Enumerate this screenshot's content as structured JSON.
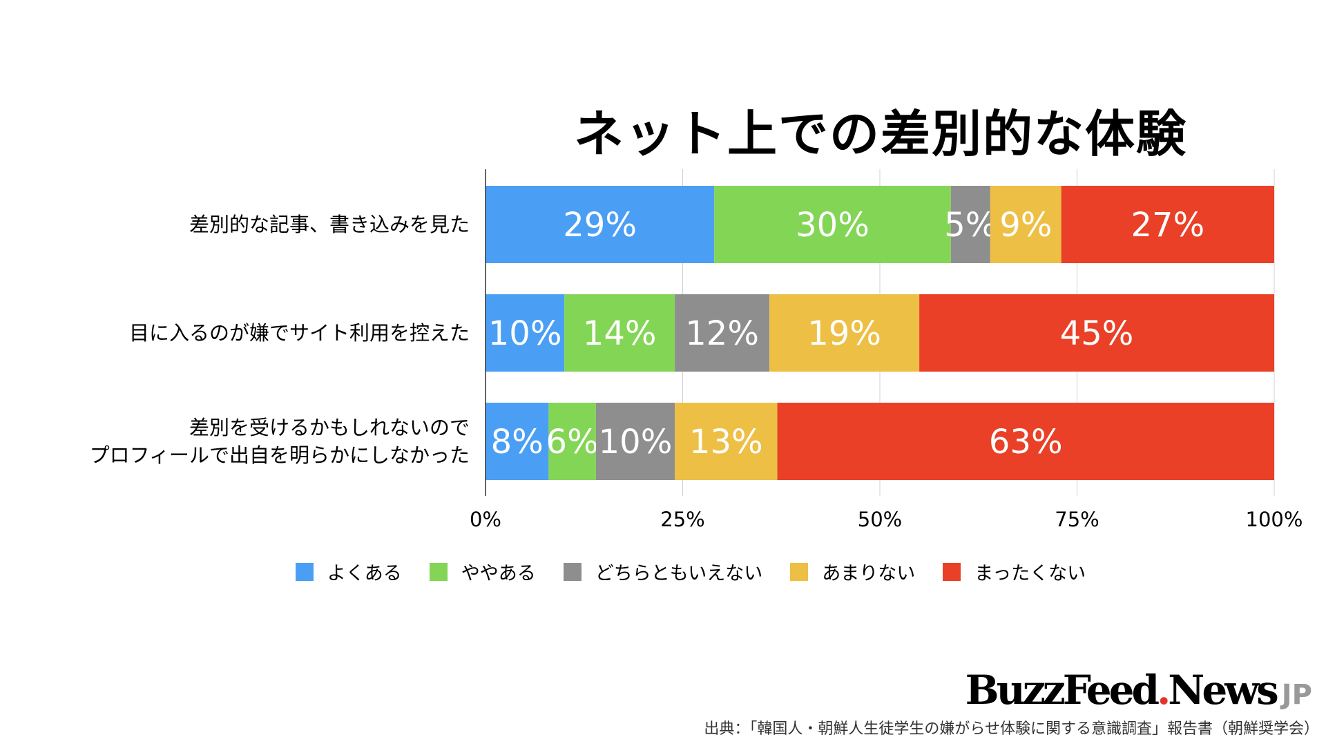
{
  "chart_data": {
    "type": "bar",
    "orientation": "horizontal",
    "stacked": true,
    "title": "ネット上での差別的な体験",
    "categories": [
      [
        "差別的な記事、書き込みを見た"
      ],
      [
        "目に入るのが嫌でサイト利用を控えた"
      ],
      [
        "差別を受けるかもしれないので",
        "プロフィールで出自を明らかにしなかった"
      ]
    ],
    "series": [
      {
        "name": "よくある",
        "color": "#4a9ff5",
        "values": [
          29,
          10,
          8
        ]
      },
      {
        "name": "ややある",
        "color": "#83d556",
        "values": [
          30,
          14,
          6
        ]
      },
      {
        "name": "どちらともいえない",
        "color": "#8e8e8e",
        "values": [
          5,
          12,
          10
        ]
      },
      {
        "name": "あまりない",
        "color": "#eebf45",
        "values": [
          9,
          19,
          13
        ]
      },
      {
        "name": "まったくない",
        "color": "#e94027",
        "values": [
          27,
          45,
          63
        ]
      }
    ],
    "value_suffix": "%",
    "xticks": [
      "0%",
      "25%",
      "50%",
      "75%",
      "100%"
    ],
    "xlim": [
      0,
      100
    ],
    "grid": true,
    "legend_position": "bottom"
  },
  "logo": {
    "text": "BuzzFeed",
    "dot": ".",
    "text2": "News",
    "jp": "JP"
  },
  "source": "出典：「韓国人・朝鮮人生徒学生の嫌がらせ体験に関する意識調査」報告書（朝鮮奨学会）"
}
